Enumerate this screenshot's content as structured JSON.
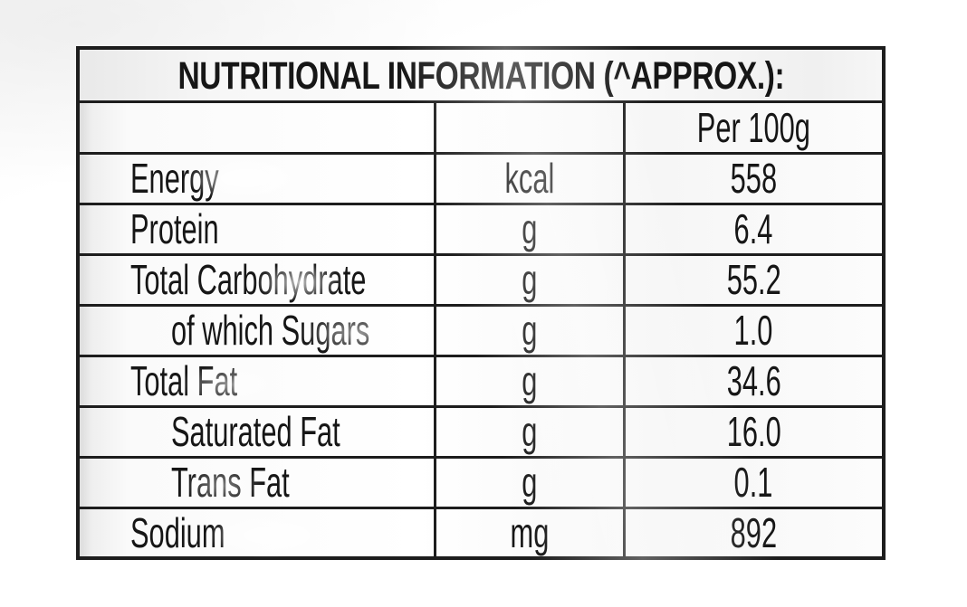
{
  "panel": {
    "title": "NUTRITIONAL INFORMATION (^APPROX.):",
    "header": {
      "col1": "",
      "col2": "",
      "col3": "Per 100g"
    },
    "rows": [
      {
        "label": "Energy",
        "unit": "kcal",
        "value": "558",
        "indent": false
      },
      {
        "label": "Protein",
        "unit": "g",
        "value": "6.4",
        "indent": false
      },
      {
        "label": "Total Carbohydrate",
        "unit": "g",
        "value": "55.2",
        "indent": false
      },
      {
        "label": "of which Sugars",
        "unit": "g",
        "value": "1.0",
        "indent": true
      },
      {
        "label": "Total Fat",
        "unit": "g",
        "value": "34.6",
        "indent": false
      },
      {
        "label": "Saturated Fat",
        "unit": "g",
        "value": "16.0",
        "indent": true
      },
      {
        "label": "Trans Fat",
        "unit": "g",
        "value": "0.1",
        "indent": true
      },
      {
        "label": "Sodium",
        "unit": "mg",
        "value": "892",
        "indent": false
      }
    ]
  },
  "colors": {
    "text": "#161616",
    "border": "#1d1d1d",
    "background": "#ffffff"
  }
}
